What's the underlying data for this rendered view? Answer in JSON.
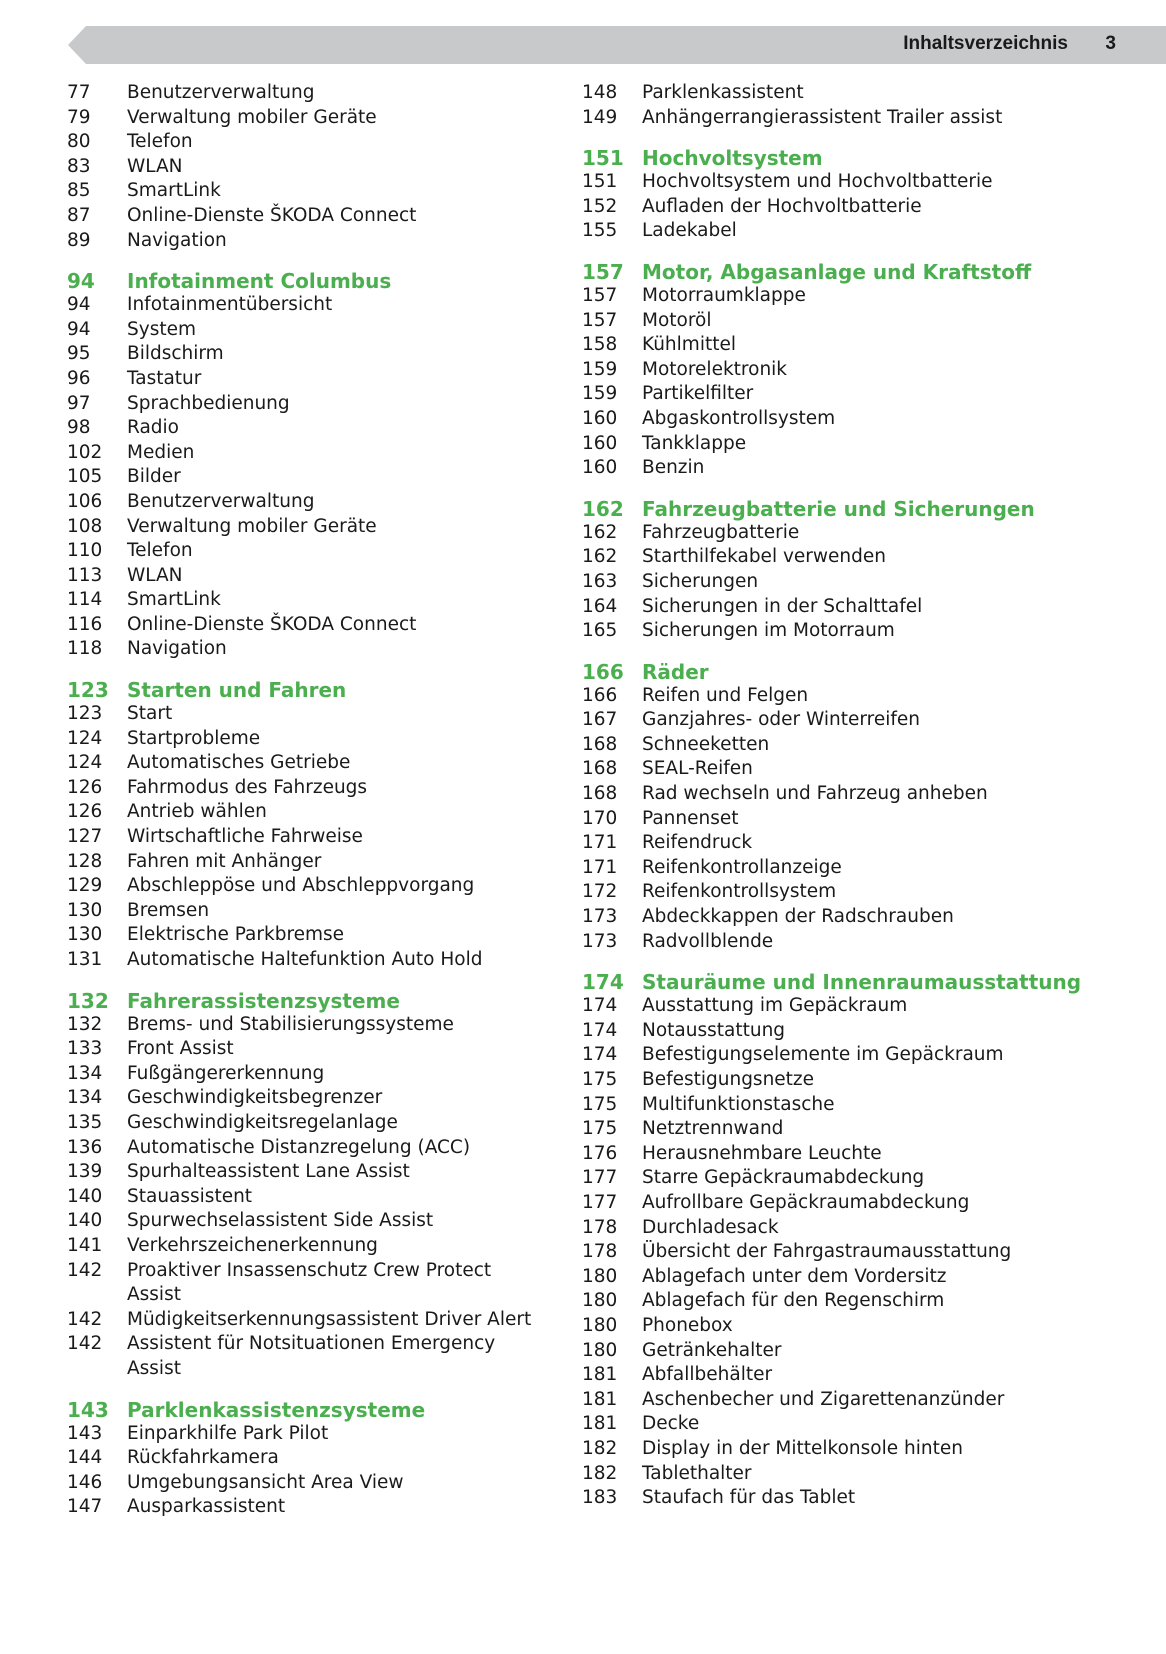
{
  "header": {
    "title": "Inhaltsverzeichnis",
    "page": "3"
  },
  "accent_color": "#4bae4f",
  "left": [
    {
      "heading": null,
      "items": [
        [
          "77",
          "Benutzerverwaltung"
        ],
        [
          "79",
          "Verwaltung mobiler Geräte"
        ],
        [
          "80",
          "Telefon"
        ],
        [
          "83",
          "WLAN"
        ],
        [
          "85",
          "SmartLink"
        ],
        [
          "87",
          "Online-Dienste ŠKODA Connect"
        ],
        [
          "89",
          "Navigation"
        ]
      ]
    },
    {
      "heading": [
        "94",
        "Infotainment Columbus"
      ],
      "items": [
        [
          "94",
          "Infotainmentübersicht"
        ],
        [
          "94",
          "System"
        ],
        [
          "95",
          "Bildschirm"
        ],
        [
          "96",
          "Tastatur"
        ],
        [
          "97",
          "Sprachbedienung"
        ],
        [
          "98",
          "Radio"
        ],
        [
          "102",
          "Medien"
        ],
        [
          "105",
          "Bilder"
        ],
        [
          "106",
          "Benutzerverwaltung"
        ],
        [
          "108",
          "Verwaltung mobiler Geräte"
        ],
        [
          "110",
          "Telefon"
        ],
        [
          "113",
          "WLAN"
        ],
        [
          "114",
          "SmartLink"
        ],
        [
          "116",
          "Online-Dienste ŠKODA Connect"
        ],
        [
          "118",
          "Navigation"
        ]
      ]
    },
    {
      "heading": [
        "123",
        "Starten und Fahren"
      ],
      "items": [
        [
          "123",
          "Start"
        ],
        [
          "124",
          "Startprobleme"
        ],
        [
          "124",
          "Automatisches Getriebe"
        ],
        [
          "126",
          "Fahrmodus des Fahrzeugs"
        ],
        [
          "126",
          "Antrieb wählen"
        ],
        [
          "127",
          "Wirtschaftliche Fahrweise"
        ],
        [
          "128",
          "Fahren mit Anhänger"
        ],
        [
          "129",
          "Abschleppöse und Abschleppvorgang"
        ],
        [
          "130",
          "Bremsen"
        ],
        [
          "130",
          "Elektrische Parkbremse"
        ],
        [
          "131",
          "Automatische Haltefunktion Auto Hold"
        ]
      ]
    },
    {
      "heading": [
        "132",
        "Fahrerassistenzsysteme"
      ],
      "items": [
        [
          "132",
          "Brems- und Stabilisierungssysteme"
        ],
        [
          "133",
          "Front Assist"
        ],
        [
          "134",
          "Fußgängererkennung"
        ],
        [
          "134",
          "Geschwindigkeitsbegrenzer"
        ],
        [
          "135",
          "Geschwindigkeitsregelanlage"
        ],
        [
          "136",
          "Automatische Distanzregelung (ACC)"
        ],
        [
          "139",
          "Spurhalteassistent Lane Assist"
        ],
        [
          "140",
          "Stauassistent"
        ],
        [
          "140",
          "Spurwechselassistent Side Assist"
        ],
        [
          "141",
          "Verkehrszeichenerkennung"
        ],
        [
          "142",
          "Proaktiver Insassenschutz Crew Protect Assist"
        ],
        [
          "142",
          "Müdigkeitserkennungsassistent Driver Alert"
        ],
        [
          "142",
          "Assistent für Notsituationen Emergency Assist"
        ]
      ]
    },
    {
      "heading": [
        "143",
        "Parklenkassistenzsysteme"
      ],
      "items": [
        [
          "143",
          "Einparkhilfe Park Pilot"
        ],
        [
          "144",
          "Rückfahrkamera"
        ],
        [
          "146",
          "Umgebungsansicht Area View"
        ],
        [
          "147",
          "Ausparkassistent"
        ]
      ]
    }
  ],
  "right": [
    {
      "heading": null,
      "items": [
        [
          "148",
          "Parklenkassistent"
        ],
        [
          "149",
          "Anhängerrangierassistent Trailer assist"
        ]
      ]
    },
    {
      "heading": [
        "151",
        "Hochvoltsystem"
      ],
      "items": [
        [
          "151",
          "Hochvoltsystem und Hochvoltbatterie"
        ],
        [
          "152",
          "Aufladen der Hochvoltbatterie"
        ],
        [
          "155",
          "Ladekabel"
        ]
      ]
    },
    {
      "heading": [
        "157",
        "Motor, Abgasanlage und Kraftstoff"
      ],
      "items": [
        [
          "157",
          "Motorraumklappe"
        ],
        [
          "157",
          "Motoröl"
        ],
        [
          "158",
          "Kühlmittel"
        ],
        [
          "159",
          "Motorelektronik"
        ],
        [
          "159",
          "Partikelfilter"
        ],
        [
          "160",
          "Abgaskontrollsystem"
        ],
        [
          "160",
          "Tankklappe"
        ],
        [
          "160",
          "Benzin"
        ]
      ]
    },
    {
      "heading": [
        "162",
        "Fahrzeugbatterie und Sicherungen"
      ],
      "items": [
        [
          "162",
          "Fahrzeugbatterie"
        ],
        [
          "162",
          "Starthilfekabel verwenden"
        ],
        [
          "163",
          "Sicherungen"
        ],
        [
          "164",
          "Sicherungen in der Schalttafel"
        ],
        [
          "165",
          "Sicherungen im Motorraum"
        ]
      ]
    },
    {
      "heading": [
        "166",
        "Räder"
      ],
      "items": [
        [
          "166",
          "Reifen und Felgen"
        ],
        [
          "167",
          "Ganzjahres- oder Winterreifen"
        ],
        [
          "168",
          "Schneeketten"
        ],
        [
          "168",
          "SEAL-Reifen"
        ],
        [
          "168",
          "Rad wechseln und Fahrzeug anheben"
        ],
        [
          "170",
          "Pannenset"
        ],
        [
          "171",
          "Reifendruck"
        ],
        [
          "171",
          "Reifenkontrollanzeige"
        ],
        [
          "172",
          "Reifenkontrollsystem"
        ],
        [
          "173",
          "Abdeckkappen der Radschrauben"
        ],
        [
          "173",
          "Radvollblende"
        ]
      ]
    },
    {
      "heading": [
        "174",
        "Stauräume und Innenraumausstattung"
      ],
      "items": [
        [
          "174",
          "Ausstattung im Gepäckraum"
        ],
        [
          "174",
          "Notausstattung"
        ],
        [
          "174",
          "Befestigungselemente im Gepäckraum"
        ],
        [
          "175",
          "Befestigungsnetze"
        ],
        [
          "175",
          "Multifunktionstasche"
        ],
        [
          "175",
          "Netztrennwand"
        ],
        [
          "176",
          "Herausnehmbare Leuchte"
        ],
        [
          "177",
          "Starre Gepäckraumabdeckung"
        ],
        [
          "177",
          "Aufrollbare Gepäckraumabdeckung"
        ],
        [
          "178",
          "Durchladesack"
        ],
        [
          "178",
          "Übersicht der Fahrgastraumausstattung"
        ],
        [
          "180",
          "Ablagefach unter dem Vordersitz"
        ],
        [
          "180",
          "Ablagefach für den Regenschirm"
        ],
        [
          "180",
          "Phonebox"
        ],
        [
          "180",
          "Getränkehalter"
        ],
        [
          "181",
          "Abfallbehälter"
        ],
        [
          "181",
          "Aschenbecher und Zigarettenanzünder"
        ],
        [
          "181",
          "Decke"
        ],
        [
          "182",
          "Display in der Mittelkonsole hinten"
        ],
        [
          "182",
          "Tablethalter"
        ],
        [
          "183",
          "Staufach für das Tablet"
        ]
      ]
    }
  ]
}
